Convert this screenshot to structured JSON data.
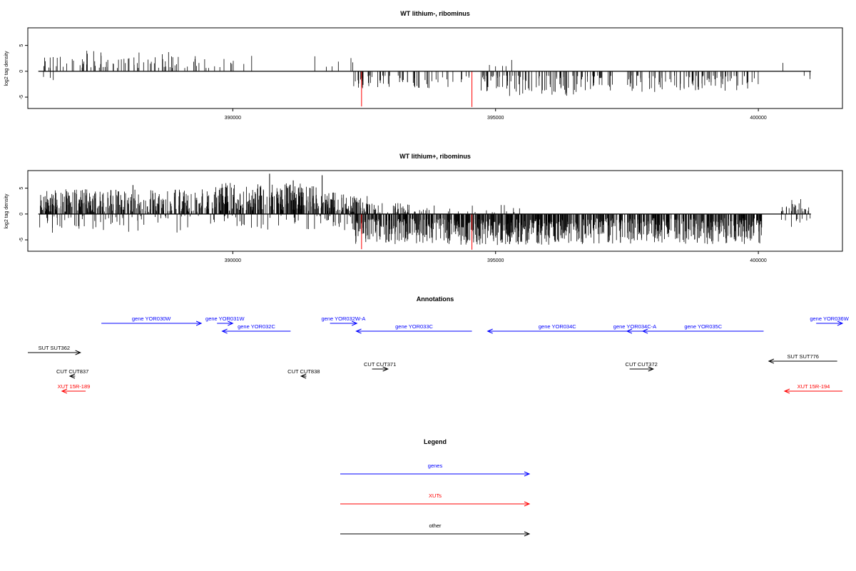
{
  "panels": [
    {
      "title": "WT lithium-, ribominus",
      "ylabel": "log2 tag density",
      "xlim": [
        386100,
        401600
      ],
      "ylim": [
        -7.2,
        8.4
      ],
      "yticks": [
        -5,
        0,
        5
      ],
      "xticks": [
        390000,
        395000,
        400000
      ],
      "baseline": {
        "x": [
          386300,
          401000
        ]
      },
      "pos_bars": {
        "seed": 11,
        "segments": [
          {
            "from": 386300,
            "to": 389600,
            "n": 80,
            "min": 0.6,
            "max": 4.0
          },
          {
            "from": 389600,
            "to": 392300,
            "n": 14,
            "min": 0.8,
            "max": 3.0
          },
          {
            "from": 394700,
            "to": 395600,
            "n": 5,
            "min": 0.8,
            "max": 3.4
          },
          {
            "from": 400400,
            "to": 400600,
            "n": 1,
            "min": 1.5,
            "max": 1.7
          }
        ]
      },
      "neg_bars": {
        "seed": 23,
        "segments": [
          {
            "from": 386300,
            "to": 386700,
            "n": 3,
            "min": 0.8,
            "max": 2.0
          },
          {
            "from": 392300,
            "to": 394500,
            "n": 60,
            "min": 0.8,
            "max": 3.4
          },
          {
            "from": 394700,
            "to": 396500,
            "n": 80,
            "min": 0.8,
            "max": 4.8
          },
          {
            "from": 396500,
            "to": 397300,
            "n": 30,
            "min": 0.8,
            "max": 4.0
          },
          {
            "from": 397500,
            "to": 400000,
            "n": 95,
            "min": 0.8,
            "max": 4.0
          },
          {
            "from": 400800,
            "to": 401000,
            "n": 3,
            "min": 0.8,
            "max": 2.6
          }
        ]
      },
      "highlights": [
        {
          "x": 392450,
          "value": -6.8
        },
        {
          "x": 394550,
          "value": -6.9
        }
      ],
      "highlight_color": "#ff0000"
    },
    {
      "title": "WT lithium+, ribominus",
      "ylabel": "log2 tag density",
      "xlim": [
        386100,
        401600
      ],
      "ylim": [
        -7.2,
        8.4
      ],
      "yticks": [
        -5,
        0,
        5
      ],
      "xticks": [
        390000,
        395000,
        400000
      ],
      "baseline": {
        "x": [
          386300,
          401000
        ]
      },
      "pos_bars": {
        "seed": 37,
        "segments": [
          {
            "from": 386300,
            "to": 389600,
            "n": 300,
            "min": 0.4,
            "max": 4.8
          },
          {
            "from": 389600,
            "to": 391600,
            "n": 220,
            "min": 0.6,
            "max": 6.0
          },
          {
            "from": 391600,
            "to": 392600,
            "n": 110,
            "min": 0.4,
            "max": 4.2
          },
          {
            "from": 392600,
            "to": 393600,
            "n": 40,
            "min": 0.3,
            "max": 2.2
          },
          {
            "from": 393600,
            "to": 395500,
            "n": 20,
            "min": 0.3,
            "max": 1.8
          },
          {
            "from": 400400,
            "to": 401000,
            "n": 25,
            "min": 0.5,
            "max": 3.2
          }
        ]
      },
      "peaks": [
        {
          "x": 390700,
          "value": 7.8
        },
        {
          "x": 391700,
          "value": 7.5
        },
        {
          "x": 391150,
          "value": 6.5
        },
        {
          "x": 388100,
          "value": 5.6
        }
      ],
      "neg_bars": {
        "seed": 53,
        "segments": [
          {
            "from": 386300,
            "to": 389600,
            "n": 60,
            "min": 0.3,
            "max": 3.8
          },
          {
            "from": 389600,
            "to": 392300,
            "n": 50,
            "min": 0.3,
            "max": 3.2
          },
          {
            "from": 392300,
            "to": 394000,
            "n": 200,
            "min": 0.8,
            "max": 5.8
          },
          {
            "from": 394000,
            "to": 396800,
            "n": 380,
            "min": 1.0,
            "max": 6.0
          },
          {
            "from": 396800,
            "to": 400100,
            "n": 400,
            "min": 0.8,
            "max": 5.8
          },
          {
            "from": 400400,
            "to": 401000,
            "n": 10,
            "min": 0.6,
            "max": 2.6
          }
        ]
      },
      "highlights": [
        {
          "x": 392450,
          "value": -6.8
        },
        {
          "x": 394550,
          "value": -6.9
        }
      ],
      "highlight_color": "#ff0000"
    }
  ],
  "annotations": {
    "title": "Annotations",
    "xlim": [
      386100,
      401600
    ],
    "colors": {
      "gene": "#0000ff",
      "xut": "#ff0000",
      "other": "#000000"
    },
    "features": [
      {
        "label": "gene YOR030W",
        "kind": "gene",
        "start": 387500,
        "end": 389400,
        "strand": "+",
        "row": 1
      },
      {
        "label": "gene YOR031W",
        "kind": "gene",
        "start": 389700,
        "end": 390000,
        "strand": "+",
        "row": 1
      },
      {
        "label": "gene YOR032C",
        "kind": "gene",
        "start": 389800,
        "end": 391100,
        "strand": "-",
        "row": 2
      },
      {
        "label": "gene YOR032W-A",
        "kind": "gene",
        "start": 391850,
        "end": 392360,
        "strand": "+",
        "row": 1
      },
      {
        "label": "gene YOR033C",
        "kind": "gene",
        "start": 392350,
        "end": 394550,
        "strand": "-",
        "row": 2
      },
      {
        "label": "gene YOR034C",
        "kind": "gene",
        "start": 394850,
        "end": 397500,
        "strand": "-",
        "row": 2
      },
      {
        "label": "gene YOR034C-A",
        "kind": "gene",
        "start": 397500,
        "end": 397800,
        "strand": "-",
        "row": 2
      },
      {
        "label": "gene YOR035C",
        "kind": "gene",
        "start": 397800,
        "end": 400100,
        "strand": "-",
        "row": 2
      },
      {
        "label": "gene YOR036W",
        "kind": "gene",
        "start": 401100,
        "end": 401600,
        "strand": "+",
        "row": 1
      },
      {
        "label": "SUT SUT362",
        "kind": "other",
        "start": 386100,
        "end": 387100,
        "strand": "+",
        "row": 3
      },
      {
        "label": "SUT SUT776",
        "kind": "other",
        "start": 400200,
        "end": 401500,
        "strand": "-",
        "row": 4
      },
      {
        "label": "CUT CUT837",
        "kind": "other",
        "start": 386900,
        "end": 387000,
        "strand": "-",
        "row": 5
      },
      {
        "label": "CUT CUT838",
        "kind": "other",
        "start": 391300,
        "end": 391400,
        "strand": "-",
        "row": 5
      },
      {
        "label": "CUT CUT371",
        "kind": "other",
        "start": 392650,
        "end": 392950,
        "strand": "+",
        "row": 4.6
      },
      {
        "label": "CUT CUT372",
        "kind": "other",
        "start": 397550,
        "end": 398000,
        "strand": "+",
        "row": 4.6
      },
      {
        "label": "XUT 15R-189",
        "kind": "xut",
        "start": 386750,
        "end": 387200,
        "strand": "-",
        "row": 6
      },
      {
        "label": "XUT 15R-194",
        "kind": "xut",
        "start": 400500,
        "end": 401600,
        "strand": "-",
        "row": 6
      }
    ]
  },
  "legend": {
    "title": "Legend",
    "items": [
      {
        "label": "genes",
        "color": "#0000ff"
      },
      {
        "label": "XUTs",
        "color": "#ff0000"
      },
      {
        "label": "other",
        "color": "#000000"
      }
    ]
  }
}
